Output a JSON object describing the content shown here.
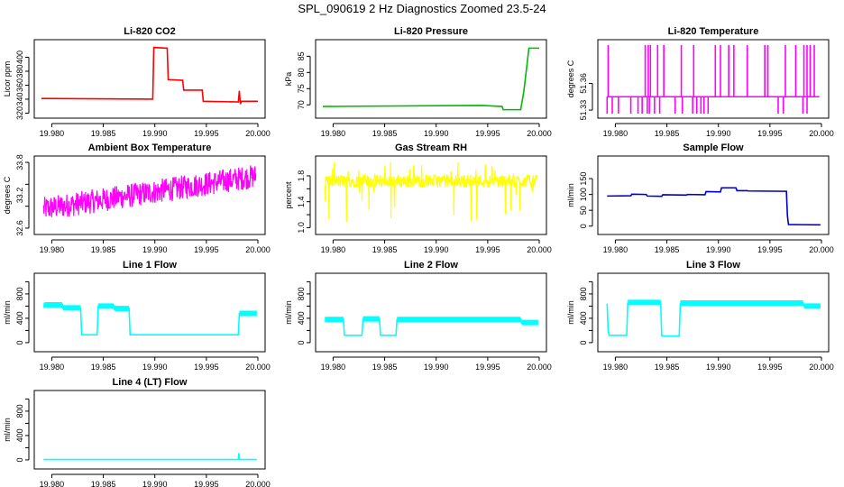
{
  "title": "SPL_090619  2 Hz Diagnostics Zoomed 23.5-24",
  "chart_data": [
    {
      "type": "line",
      "title": "Li-820 CO2",
      "ylabel": "Licor ppm",
      "color": "#ff0000",
      "ylim": [
        318,
        420
      ],
      "yticks": [
        320,
        340,
        360,
        380,
        400
      ],
      "ytick_labels": [
        "320",
        "340",
        "360",
        "380",
        "400"
      ],
      "xlim": [
        19.979,
        20.0
      ],
      "xticks": [
        19.98,
        19.985,
        19.99,
        19.995,
        20.0
      ],
      "xtick_labels": [
        "19.980",
        "19.985",
        "19.990",
        "19.995",
        "20.000"
      ],
      "x": [
        19.979,
        19.9898,
        19.9899,
        19.9912,
        19.9913,
        19.9927,
        19.9928,
        19.9946,
        19.9947,
        19.9981,
        19.9982,
        19.9983,
        19.9984,
        20.0
      ],
      "values": [
        341,
        340,
        414,
        413,
        368,
        367,
        353,
        353,
        337,
        336,
        352,
        333,
        337,
        337
      ]
    },
    {
      "type": "line",
      "title": "Li-820 Pressure",
      "ylabel": "kPa",
      "color": "#00bb00",
      "ylim": [
        67,
        89
      ],
      "yticks": [
        70,
        75,
        80,
        85
      ],
      "ytick_labels": [
        "70",
        "75",
        "80",
        "85"
      ],
      "xlim": [
        19.979,
        20.0
      ],
      "xticks": [
        19.98,
        19.985,
        19.99,
        19.995,
        20.0
      ],
      "xtick_labels": [
        "19.980",
        "19.985",
        "19.990",
        "19.995",
        "20.000"
      ],
      "x": [
        19.979,
        19.9945,
        19.9964,
        19.9965,
        19.9982,
        19.9985,
        19.9988,
        19.999,
        20.0
      ],
      "values": [
        69.5,
        69.8,
        69.5,
        68.5,
        68.5,
        74,
        82,
        87.5,
        87.5
      ]
    },
    {
      "type": "line",
      "title": "Li-820 Temperature",
      "ylabel": "degrees C",
      "color": "#ff00ff",
      "ylim": [
        51.325,
        51.405
      ],
      "yticks": [
        51.33,
        51.36
      ],
      "ytick_labels": [
        "51.33",
        "51.36"
      ],
      "xlim": [
        19.979,
        20.0
      ],
      "xticks": [
        19.98,
        19.985,
        19.99,
        19.995,
        20.0
      ],
      "xtick_labels": [
        "19.980",
        "19.985",
        "19.990",
        "19.995",
        "20.000"
      ],
      "baseline": 51.345,
      "low": 51.326,
      "high": 51.403,
      "low_x": [
        19.9792,
        19.9797,
        19.9803,
        19.9815,
        19.9822,
        19.9826,
        19.9831,
        19.9833,
        19.9838,
        19.9843,
        19.9858,
        19.9865,
        19.9875,
        19.9879,
        19.9883,
        19.9886,
        19.989,
        19.9958,
        19.9963,
        19.9982,
        19.9986
      ],
      "high_x": [
        19.9793,
        19.9829,
        19.9832,
        19.9834,
        19.9841,
        19.9847,
        19.9864,
        19.9876,
        19.9897,
        19.9902,
        19.991,
        19.9915,
        19.9928,
        19.9945,
        19.9948,
        19.9965,
        19.9975,
        19.9983,
        19.9986,
        19.9989,
        19.9993
      ]
    },
    {
      "type": "line",
      "title": "Ambient Box Temperature",
      "ylabel": "degrees C",
      "color": "#ff00ff",
      "ylim": [
        32.55,
        33.85
      ],
      "yticks": [
        32.6,
        33.0,
        33.4,
        33.8
      ],
      "ytick_labels": [
        "32.6",
        "33.2",
        "33.8"
      ],
      "ytick_label_vals": [
        32.6,
        33.2,
        33.8
      ],
      "xlim": [
        19.979,
        20.0
      ],
      "xticks": [
        19.98,
        19.985,
        19.99,
        19.995,
        20.0
      ],
      "xtick_labels": [
        "19.980",
        "19.985",
        "19.990",
        "19.995",
        "20.000"
      ],
      "start": 32.95,
      "end": 33.55,
      "noise": 0.22
    },
    {
      "type": "line",
      "title": "Gas Stream RH",
      "ylabel": "percent",
      "color": "#ffff00",
      "ylim": [
        0.95,
        2.05
      ],
      "yticks": [
        1.0,
        1.2,
        1.4,
        1.6,
        1.8
      ],
      "ytick_labels": [
        "1.0",
        "1.4",
        "1.8"
      ],
      "ytick_label_vals": [
        1.0,
        1.4,
        1.8
      ],
      "xlim": [
        19.979,
        20.0
      ],
      "xticks": [
        19.98,
        19.985,
        19.99,
        19.995,
        20.0
      ],
      "xtick_labels": [
        "19.980",
        "19.985",
        "19.990",
        "19.995",
        "20.000"
      ],
      "center": 1.72,
      "noise": 0.1
    },
    {
      "type": "line",
      "title": "Sample Flow",
      "ylabel": "ml/min",
      "color": "#0000cc",
      "ylim": [
        -15,
        210
      ],
      "yticks": [
        0,
        50,
        100,
        150
      ],
      "ytick_labels": [
        "0",
        "50",
        "100",
        "150"
      ],
      "xlim": [
        19.979,
        20.0
      ],
      "xticks": [
        19.98,
        19.985,
        19.99,
        19.995,
        20.0
      ],
      "xtick_labels": [
        "19.980",
        "19.985",
        "19.990",
        "19.995",
        "20.000"
      ],
      "x": [
        19.9792,
        19.9815,
        19.9816,
        19.983,
        19.9831,
        19.9845,
        19.9846,
        19.9869,
        19.987,
        19.9887,
        19.9888,
        19.9902,
        19.9903,
        19.9917,
        19.9918,
        19.9928,
        19.9929,
        19.9966,
        19.99665,
        19.9967,
        19.9968,
        19.9999
      ],
      "values": [
        95,
        96,
        101,
        100,
        95,
        94,
        99,
        98,
        100,
        99,
        109,
        108,
        121,
        121,
        112,
        112,
        111,
        110,
        70,
        32,
        5,
        4
      ]
    },
    {
      "type": "line",
      "title": "Line 1 Flow",
      "ylabel": "ml/min",
      "color": "#00ffff",
      "ylim": [
        -90,
        1080
      ],
      "yticks": [
        0,
        200,
        400,
        600,
        800,
        1000
      ],
      "ytick_labels": [
        "0",
        "400",
        "800"
      ],
      "ytick_label_vals": [
        0,
        400,
        800
      ],
      "xlim": [
        19.979,
        20.0
      ],
      "xticks": [
        19.98,
        19.985,
        19.99,
        19.995,
        20.0
      ],
      "xtick_labels": [
        "19.980",
        "19.985",
        "19.990",
        "19.995",
        "20.000"
      ],
      "x": [
        19.9792,
        19.9793,
        19.981,
        19.9811,
        19.9828,
        19.9829,
        19.9844,
        19.9845,
        19.986,
        19.9861,
        19.9875,
        19.9876,
        19.9981,
        19.9982,
        19.9999
      ],
      "values": [
        600,
        620,
        620,
        570,
        570,
        130,
        130,
        600,
        600,
        560,
        560,
        130,
        130,
        480,
        480
      ]
    },
    {
      "type": "line",
      "title": "Line 2 Flow",
      "ylabel": "ml/min",
      "color": "#00ffff",
      "ylim": [
        -90,
        1080
      ],
      "yticks": [
        0,
        200,
        400,
        600,
        800,
        1000
      ],
      "ytick_labels": [
        "0",
        "400",
        "800"
      ],
      "ytick_label_vals": [
        0,
        400,
        800
      ],
      "xlim": [
        19.979,
        20.0
      ],
      "xticks": [
        19.98,
        19.985,
        19.99,
        19.995,
        20.0
      ],
      "xtick_labels": [
        "19.980",
        "19.985",
        "19.990",
        "19.995",
        "20.000"
      ],
      "x": [
        19.9792,
        19.981,
        19.9811,
        19.9828,
        19.9829,
        19.9845,
        19.9846,
        19.9861,
        19.9862,
        19.9982,
        19.9983,
        19.9999
      ],
      "values": [
        380,
        380,
        120,
        120,
        390,
        390,
        120,
        120,
        380,
        380,
        330,
        330
      ]
    },
    {
      "type": "line",
      "title": "Line 3 Flow",
      "ylabel": "ml/min",
      "color": "#00ffff",
      "ylim": [
        -90,
        1080
      ],
      "yticks": [
        0,
        200,
        400,
        600,
        800,
        1000
      ],
      "ytick_labels": [
        "0",
        "400",
        "800"
      ],
      "ytick_label_vals": [
        0,
        400,
        800
      ],
      "xlim": [
        19.979,
        20.0
      ],
      "xticks": [
        19.98,
        19.985,
        19.99,
        19.995,
        20.0
      ],
      "xtick_labels": [
        "19.980",
        "19.985",
        "19.990",
        "19.995",
        "20.000"
      ],
      "x": [
        19.9792,
        19.9793,
        19.9794,
        19.9811,
        19.9812,
        19.9844,
        19.9845,
        19.9862,
        19.9863,
        19.9982,
        19.9983,
        19.9999
      ],
      "values": [
        640,
        200,
        120,
        120,
        650,
        670,
        110,
        110,
        640,
        660,
        600,
        600
      ]
    },
    {
      "type": "line",
      "title": "Line 4 (LT) Flow",
      "ylabel": "ml/min",
      "color": "#00ffff",
      "ylim": [
        -90,
        1080
      ],
      "yticks": [
        0,
        200,
        400,
        600,
        800,
        1000
      ],
      "ytick_labels": [
        "0",
        "400",
        "800"
      ],
      "ytick_label_vals": [
        0,
        400,
        800
      ],
      "xlim": [
        19.979,
        20.0
      ],
      "xticks": [
        19.98,
        19.985,
        19.99,
        19.995,
        20.0
      ],
      "xtick_labels": [
        "19.980",
        "19.985",
        "19.990",
        "19.995",
        "20.000"
      ],
      "x": [
        19.9792,
        19.9981,
        19.99815,
        19.9982,
        19.99825,
        19.9999
      ],
      "values": [
        5,
        5,
        110,
        40,
        5,
        5
      ]
    }
  ]
}
